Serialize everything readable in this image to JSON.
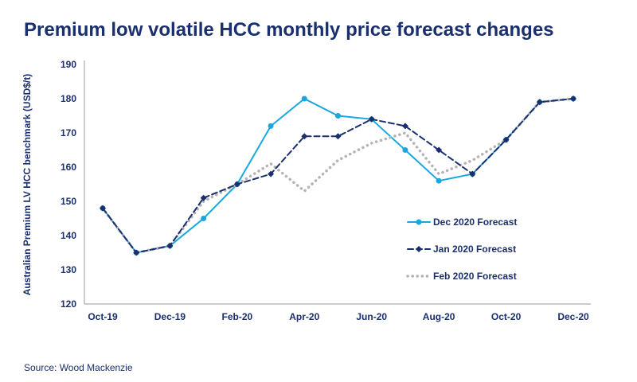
{
  "title": "Premium low volatile HCC monthly price forecast changes",
  "source": "Source: Wood Mackenzie",
  "colors": {
    "dec": "#1aa7e0",
    "jan": "#1a2f6e",
    "feb": "#b3b3b3",
    "text": "#1a2f6e"
  },
  "chart_data": {
    "type": "line",
    "title": "Premium low volatile HCC monthly price forecast changes",
    "ylabel": "Australian Premium LV HCC benchmark (USD$/t)",
    "xlabel": "",
    "ylim": [
      120,
      190
    ],
    "yticks": [
      120,
      130,
      140,
      150,
      160,
      170,
      180,
      190
    ],
    "x": [
      "Oct-19",
      "Nov-19",
      "Dec-19",
      "Jan-20",
      "Feb-20",
      "Mar-20",
      "Apr-20",
      "May-20",
      "Jun-20",
      "Jul-20",
      "Aug-20",
      "Sep-20",
      "Oct-20",
      "Nov-20",
      "Dec-20"
    ],
    "xticks": [
      "Oct-19",
      "Dec-19",
      "Feb-20",
      "Apr-20",
      "Jun-20",
      "Aug-20",
      "Oct-20",
      "Dec-20"
    ],
    "grid": false,
    "legend": "bottom-right",
    "series": [
      {
        "name": "Dec 2020 Forecast",
        "values": [
          148,
          135,
          137,
          145,
          155,
          172,
          180,
          175,
          174,
          165,
          156,
          158,
          168,
          179,
          180
        ]
      },
      {
        "name": "Jan 2020 Forecast",
        "values": [
          148,
          135,
          137,
          151,
          155,
          158,
          169,
          169,
          174,
          172,
          165,
          158,
          168,
          179,
          180
        ]
      },
      {
        "name": "Feb 2020 Forecast",
        "values": [
          148,
          135,
          137,
          150,
          155,
          161,
          153,
          162,
          167,
          170,
          158,
          162,
          168,
          179,
          180
        ]
      }
    ]
  }
}
